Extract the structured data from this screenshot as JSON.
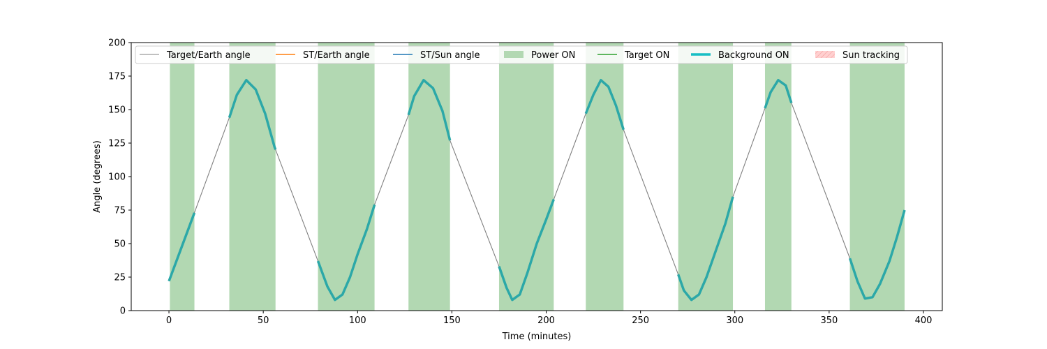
{
  "chart_data": {
    "type": "line",
    "title": "",
    "xlabel": "Time (minutes)",
    "ylabel": "Angle (degrees)",
    "xlim": [
      -20,
      410
    ],
    "ylim": [
      0,
      200
    ],
    "xticks": [
      0,
      50,
      100,
      150,
      200,
      250,
      300,
      350,
      400
    ],
    "yticks": [
      0,
      25,
      50,
      75,
      100,
      125,
      150,
      175,
      200
    ],
    "grid": false,
    "legend_position": "top",
    "series": [
      {
        "name": "Target/Earth angle",
        "style": "thin-line",
        "color": "#808080",
        "points": [
          [
            0,
            22
          ],
          [
            13.5,
            73
          ],
          [
            32,
            144
          ],
          [
            36,
            161
          ],
          [
            41,
            172
          ],
          [
            46,
            165
          ],
          [
            51,
            147
          ],
          [
            56,
            122
          ],
          [
            79,
            37
          ],
          [
            84,
            18
          ],
          [
            88,
            8
          ],
          [
            92,
            12
          ],
          [
            96,
            25
          ],
          [
            100,
            42
          ],
          [
            105,
            61
          ],
          [
            109,
            79
          ],
          [
            127,
            146
          ],
          [
            130,
            160
          ],
          [
            135,
            172
          ],
          [
            140,
            166
          ],
          [
            145,
            149
          ],
          [
            149,
            127
          ],
          [
            175,
            33
          ],
          [
            179,
            17
          ],
          [
            182,
            8
          ],
          [
            186,
            12
          ],
          [
            190,
            28
          ],
          [
            195,
            50
          ],
          [
            200,
            68
          ],
          [
            204,
            83
          ],
          [
            221,
            147
          ],
          [
            225,
            161
          ],
          [
            229,
            172
          ],
          [
            233,
            167
          ],
          [
            237,
            153
          ],
          [
            241,
            135
          ],
          [
            270,
            27
          ],
          [
            273,
            15
          ],
          [
            277,
            8
          ],
          [
            281,
            12
          ],
          [
            285,
            25
          ],
          [
            290,
            45
          ],
          [
            295,
            65
          ],
          [
            299,
            85
          ],
          [
            316,
            151
          ],
          [
            319,
            163
          ],
          [
            323,
            172
          ],
          [
            327,
            168
          ],
          [
            330,
            155
          ],
          [
            361,
            39
          ],
          [
            365,
            22
          ],
          [
            369,
            9
          ],
          [
            373,
            10
          ],
          [
            377,
            20
          ],
          [
            382,
            37
          ],
          [
            386,
            55
          ],
          [
            390,
            75
          ]
        ]
      },
      {
        "name": "ST/Earth angle",
        "style": "line",
        "color": "#ff7f0e",
        "points": []
      },
      {
        "name": "ST/Sun angle",
        "style": "line",
        "color": "#1f77b4",
        "points": []
      },
      {
        "name": "Power ON",
        "style": "span",
        "color": "#b2d8b2",
        "intervals": [
          [
            0.5,
            13.5
          ],
          [
            32,
            56.5
          ],
          [
            79,
            109
          ],
          [
            127,
            149
          ],
          [
            175,
            204
          ],
          [
            221,
            241
          ],
          [
            270,
            299
          ],
          [
            316,
            330
          ],
          [
            361,
            390
          ]
        ]
      },
      {
        "name": "Target ON",
        "style": "line",
        "color": "#2ca02c",
        "points": []
      },
      {
        "name": "Background ON",
        "style": "thick-line",
        "color": "#2ca8a8",
        "legend_color": "#17bec4",
        "intervals": [
          [
            0,
            13.5
          ],
          [
            32,
            56.5
          ],
          [
            79,
            109
          ],
          [
            127,
            149
          ],
          [
            175,
            204
          ],
          [
            221,
            241
          ],
          [
            270,
            299
          ],
          [
            316,
            330
          ],
          [
            361,
            390
          ]
        ]
      },
      {
        "name": "Sun tracking",
        "style": "hatch",
        "color": "#ffd0d0",
        "intervals": []
      }
    ]
  }
}
